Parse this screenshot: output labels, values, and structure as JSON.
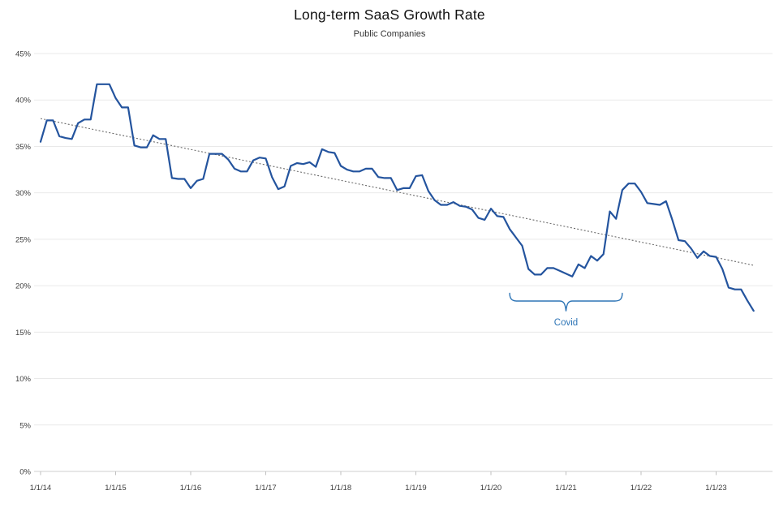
{
  "header": {
    "title": "Long-term SaaS Growth Rate",
    "subtitle": "Public Companies"
  },
  "annotation": {
    "covid_label": "Covid",
    "covid_color": "#2e75b6",
    "covid_start_month_index": 75,
    "covid_end_month_index": 93
  },
  "chart_data": {
    "type": "line",
    "title": "Long-term SaaS Growth Rate",
    "subtitle": "Public Companies",
    "x_start": "1/1/14",
    "x_frequency": "monthly",
    "x_tick_labels": [
      "1/1/14",
      "1/1/15",
      "1/1/16",
      "1/1/17",
      "1/1/18",
      "1/1/19",
      "1/1/20",
      "1/1/21",
      "1/1/22",
      "1/1/23"
    ],
    "y_tick_labels": [
      "0%",
      "5%",
      "10%",
      "15%",
      "20%",
      "25%",
      "30%",
      "35%",
      "40%",
      "45%"
    ],
    "ylim": [
      0,
      45
    ],
    "y_tick_step": 5,
    "grid": "horizontal-only",
    "legend": "none",
    "line_color": "#24549e",
    "trend": {
      "style": "dotted",
      "color": "#6a6a6a",
      "start_value": 38.0,
      "end_value": 22.2
    },
    "series": [
      {
        "name": "SaaS growth rate",
        "color": "#24549e",
        "values": [
          35.5,
          37.8,
          37.8,
          36.1,
          35.9,
          35.8,
          37.5,
          37.9,
          37.9,
          41.7,
          41.7,
          41.7,
          40.2,
          39.2,
          39.2,
          35.1,
          34.9,
          34.9,
          36.2,
          35.8,
          35.8,
          31.6,
          31.5,
          31.5,
          30.5,
          31.3,
          31.5,
          34.2,
          34.2,
          34.2,
          33.6,
          32.6,
          32.3,
          32.3,
          33.5,
          33.8,
          33.7,
          31.7,
          30.4,
          30.7,
          32.9,
          33.2,
          33.1,
          33.3,
          32.8,
          34.7,
          34.4,
          34.3,
          32.9,
          32.5,
          32.3,
          32.3,
          32.6,
          32.6,
          31.7,
          31.6,
          31.6,
          30.3,
          30.5,
          30.5,
          31.8,
          31.9,
          30.2,
          29.2,
          28.7,
          28.7,
          29.0,
          28.6,
          28.5,
          28.2,
          27.3,
          27.1,
          28.3,
          27.5,
          27.4,
          26.1,
          25.2,
          24.3,
          21.8,
          21.2,
          21.2,
          21.9,
          21.9,
          21.6,
          21.3,
          21.0,
          22.3,
          21.9,
          23.2,
          22.7,
          23.4,
          28.0,
          27.2,
          30.3,
          31.0,
          31.0,
          30.1,
          28.9,
          28.8,
          28.7,
          29.1,
          27.1,
          24.9,
          24.8,
          24.0,
          23.0,
          23.7,
          23.2,
          23.1,
          21.8,
          19.8,
          19.6,
          19.6,
          18.4,
          17.3
        ]
      }
    ],
    "annotations": [
      {
        "type": "brace",
        "label": "Covid",
        "color": "#2e75b6",
        "start_month_index": 75,
        "end_month_index": 93
      }
    ]
  }
}
